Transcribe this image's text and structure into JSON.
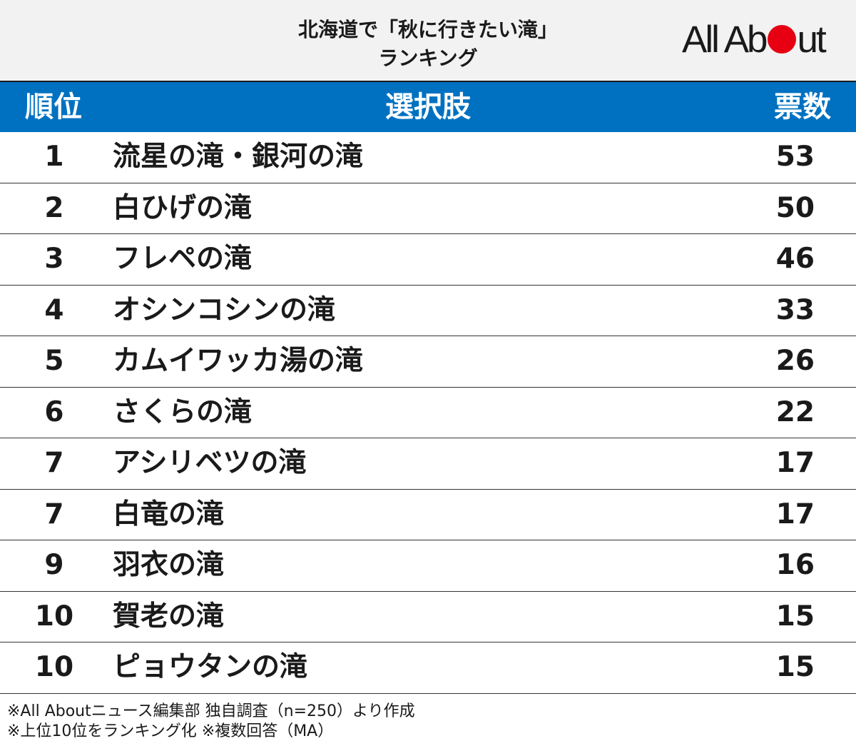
{
  "header": {
    "title_line1": "北海道で「秋に行きたい滝」",
    "title_line2": "ランキング",
    "logo_left": "All Ab",
    "logo_right": "ut"
  },
  "table_header": {
    "rank": "順位",
    "choice": "選択肢",
    "votes": "票数"
  },
  "chart_data": {
    "type": "table",
    "columns": [
      "順位",
      "選択肢",
      "票数"
    ],
    "rows": [
      {
        "rank": "1",
        "name": "流星の滝・銀河の滝",
        "votes": "53"
      },
      {
        "rank": "2",
        "name": "白ひげの滝",
        "votes": "50"
      },
      {
        "rank": "3",
        "name": "フレペの滝",
        "votes": "46"
      },
      {
        "rank": "4",
        "name": "オシンコシンの滝",
        "votes": "33"
      },
      {
        "rank": "5",
        "name": "カムイワッカ湯の滝",
        "votes": "26"
      },
      {
        "rank": "6",
        "name": "さくらの滝",
        "votes": "22"
      },
      {
        "rank": "7",
        "name": "アシリベツの滝",
        "votes": "17"
      },
      {
        "rank": "7",
        "name": "白竜の滝",
        "votes": "17"
      },
      {
        "rank": "9",
        "name": "羽衣の滝",
        "votes": "16"
      },
      {
        "rank": "10",
        "name": "賀老の滝",
        "votes": "15"
      },
      {
        "rank": "10",
        "name": "ピョウタンの滝",
        "votes": "15"
      }
    ]
  },
  "footer": {
    "note1": "※All Aboutニュース編集部 独自調査（n=250）より作成",
    "note2": "※上位10位をランキング化 ※複数回答（MA）"
  },
  "colors": {
    "header_bg": "#f2f2f2",
    "table_header_bg": "#0071c1",
    "logo_dot": "#e60012"
  }
}
